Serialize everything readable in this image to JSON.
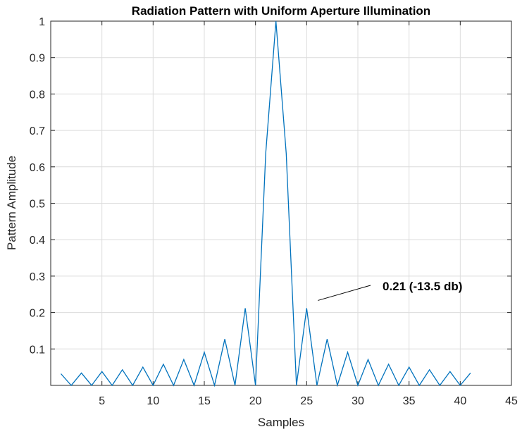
{
  "chart_data": {
    "type": "line",
    "title": "Radiation Pattern with Uniform Aperture Illumination",
    "xlabel": "Samples",
    "ylabel": "Pattern Amplitude",
    "xlim": [
      0,
      45
    ],
    "ylim": [
      0,
      1
    ],
    "xticks": [
      5,
      10,
      15,
      20,
      25,
      30,
      35,
      40,
      45
    ],
    "yticks": [
      0.1,
      0.2,
      0.3,
      0.4,
      0.5,
      0.6,
      0.7,
      0.8,
      0.9,
      1
    ],
    "ytick_labels": [
      "0.1",
      "0.2",
      "0.3",
      "0.4",
      "0.5",
      "0.6",
      "0.7",
      "0.8",
      "0.9",
      "1"
    ],
    "grid": true,
    "line_color": "#0072BD",
    "x": [
      1,
      2,
      3,
      4,
      5,
      6,
      7,
      8,
      9,
      10,
      11,
      12,
      13,
      14,
      15,
      16,
      17,
      18,
      19,
      20,
      21,
      22,
      23,
      24,
      25,
      26,
      27,
      28,
      29,
      30,
      31,
      32,
      33,
      34,
      35,
      36,
      37,
      38,
      39,
      40,
      41
    ],
    "values": [
      0.032,
      0.0,
      0.034,
      0.0,
      0.038,
      0.0,
      0.043,
      0.0,
      0.05,
      0.0,
      0.058,
      0.0,
      0.071,
      0.0,
      0.091,
      0.0,
      0.127,
      0.0,
      0.212,
      0.0,
      0.637,
      1.0,
      0.637,
      0.0,
      0.212,
      0.0,
      0.127,
      0.0,
      0.091,
      0.0,
      0.071,
      0.0,
      0.058,
      0.0,
      0.05,
      0.0,
      0.043,
      0.0,
      0.038,
      0.0,
      0.034
    ],
    "annotation": {
      "text": "0.21  (-13.5 db)",
      "points_to": {
        "x": 25,
        "y": 0.21
      }
    }
  }
}
